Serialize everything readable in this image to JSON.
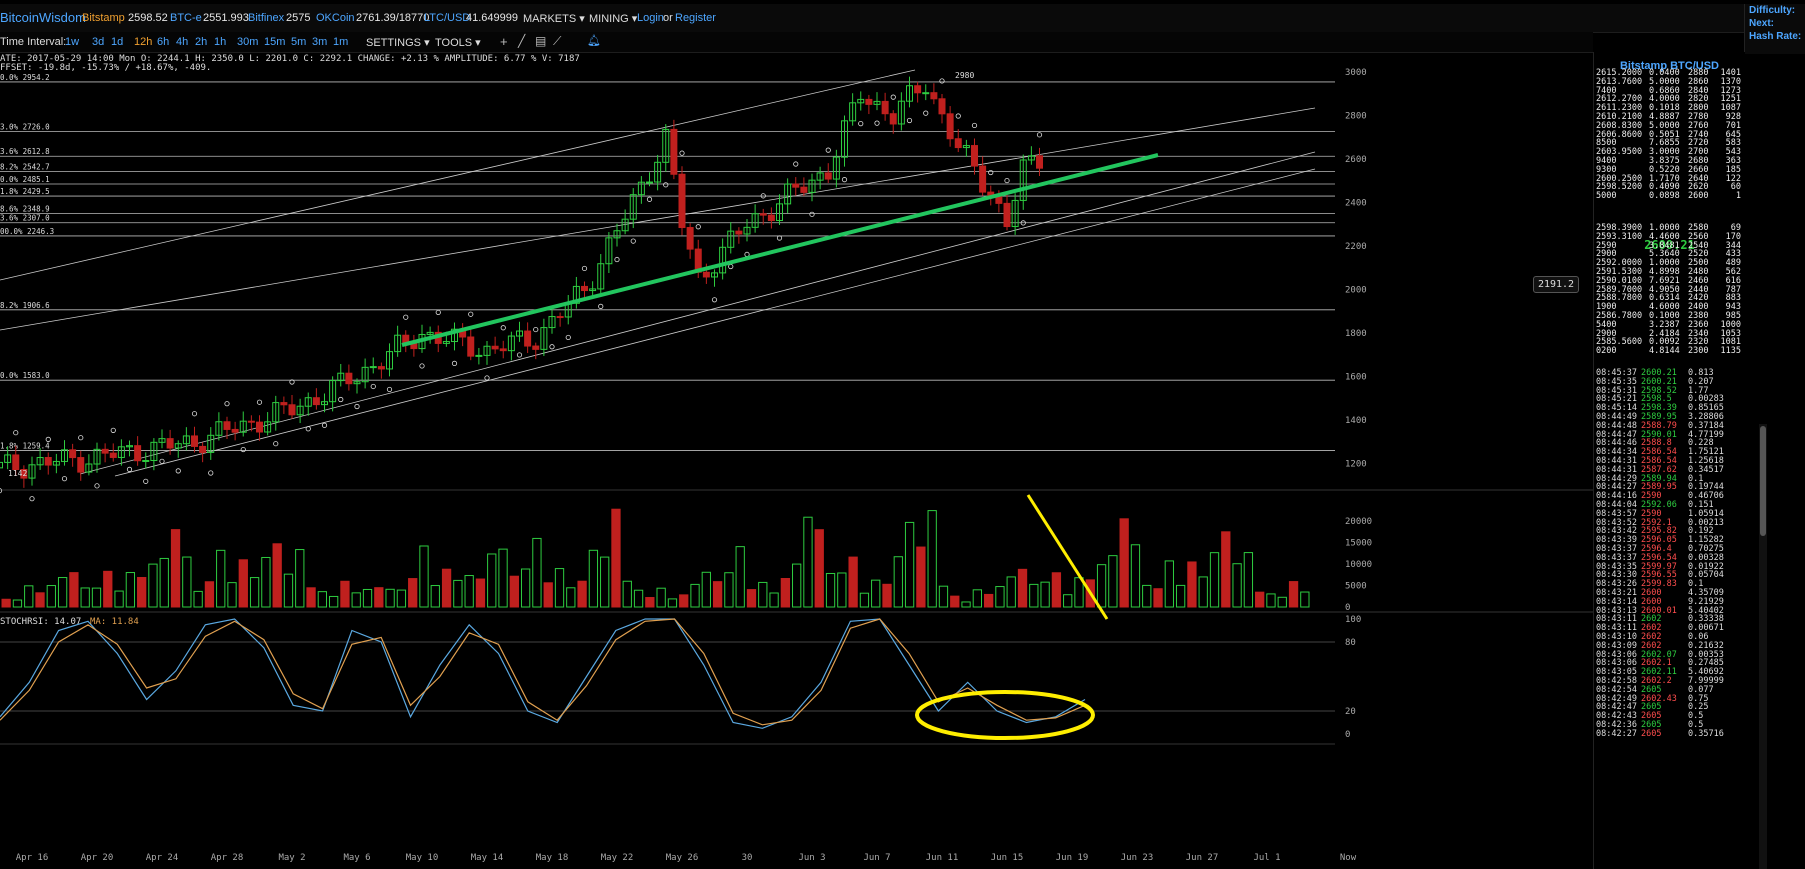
{
  "header": {
    "logo": "BitcoinWisdom",
    "markets": [
      {
        "name": "Bitstamp",
        "price": "2598.52"
      },
      {
        "name": "BTC-e",
        "price": "2551.993"
      },
      {
        "name": "Bitfinex",
        "price": "2575"
      },
      {
        "name": "OKCoin",
        "price": "2761.39/18770"
      },
      {
        "name": "LTC/USD",
        "price": "41.649999"
      }
    ],
    "menus": [
      "MARKETS",
      "MINING"
    ],
    "login": "Login",
    "or": "or",
    "register": "Register",
    "right_labels": [
      "Difficulty:",
      "Next:",
      "Hash Rate:"
    ]
  },
  "toolbar": {
    "label": "Time Interval:",
    "intervals": [
      "1w",
      "3d",
      "1d",
      "12h",
      "6h",
      "4h",
      "2h",
      "1h",
      "30m",
      "15m",
      "5m",
      "3m",
      "1m"
    ],
    "active_interval": "12h",
    "settings": "SETTINGS",
    "tools": "TOOLS",
    "icons": [
      "crosshair-icon",
      "line-tool-icon",
      "hline-tool-icon",
      "ruler-icon",
      "bell-icon"
    ]
  },
  "info": {
    "line1": "ATE: 2017-05-29 14:00 Mon   O: 2244.1   H: 2350.0   L: 2201.0   C: 2292.1   CHANGE: +2.13 %   AMPLITUDE: 6.77 %   V: 7187",
    "line2": "FFSET: -19.8d, -15.73% / +18.67%, -409.",
    "stochrsi": "STOCHRSI: 14.07",
    "ma": "MA: 11.84",
    "pricetag": "2191.2",
    "peak_label": "2980",
    "low_label": "1142"
  },
  "colors": {
    "up": "#2ecc40",
    "down": "#c0201e",
    "link": "#4da6ff",
    "exchange": "#f0a030",
    "trendline": "#22c55e",
    "highlight": "#ffee00",
    "k_line": "#5aa8e0",
    "d_line": "#e0a050"
  },
  "chart_data": [
    {
      "type": "candlestick",
      "title": "",
      "interval": "12h",
      "x_ticks": [
        "Apr 16",
        "Apr 20",
        "Apr 24",
        "Apr 28",
        "May 2",
        "May 6",
        "May 10",
        "May 14",
        "May 18",
        "May 22",
        "May 26",
        "30",
        "Jun 3",
        "Jun 7",
        "Jun 11",
        "Jun 15",
        "Jun 19",
        "Jun 23",
        "Jun 27",
        "Jul 1",
        "Now"
      ],
      "y_ticks": [
        1200,
        1400,
        1600,
        1800,
        2000,
        2200,
        2400,
        2600,
        2800,
        3000
      ],
      "ylim": [
        1142,
        3010
      ],
      "fib_levels": [
        {
          "label": "0.0% 2954.2",
          "value": 2954.2
        },
        {
          "label": "3.0% 2726.0",
          "value": 2726.0
        },
        {
          "label": "3.6% 2612.8",
          "value": 2612.8
        },
        {
          "label": "8.2% 2542.7",
          "value": 2542.7
        },
        {
          "label": "0.0% 2485.1",
          "value": 2485.1
        },
        {
          "label": "1.8% 2429.5",
          "value": 2429.5
        },
        {
          "label": "8.6% 2348.9",
          "value": 2348.9
        },
        {
          "label": "3.6% 2307.0",
          "value": 2307.0
        },
        {
          "label": "00.0% 2246.3",
          "value": 2246.3
        },
        {
          "label": "8.2% 1906.6",
          "value": 1906.6
        },
        {
          "label": "0.0% 1583.0",
          "value": 1583.0
        },
        {
          "label": "1.8% 1259.4",
          "value": 1259.4
        }
      ],
      "key_points": [
        {
          "date": "Apr 14",
          "close": 1180
        },
        {
          "date": "Apr 20",
          "close": 1230
        },
        {
          "date": "Apr 26",
          "close": 1300
        },
        {
          "date": "May 2",
          "close": 1450
        },
        {
          "date": "May 5",
          "close": 1560
        },
        {
          "date": "May 8",
          "close": 1700
        },
        {
          "date": "May 10",
          "close": 1800
        },
        {
          "date": "May 14",
          "close": 1720
        },
        {
          "date": "May 17",
          "close": 1780
        },
        {
          "date": "May 20",
          "close": 2000
        },
        {
          "date": "May 23",
          "close": 2400
        },
        {
          "date": "May 25",
          "close": 2700
        },
        {
          "date": "May 26",
          "close": 2300
        },
        {
          "date": "May 27",
          "close": 2050
        },
        {
          "date": "May 30",
          "close": 2300
        },
        {
          "date": "Jun 2",
          "close": 2450
        },
        {
          "date": "Jun 4",
          "close": 2550
        },
        {
          "date": "Jun 6",
          "close": 2900
        },
        {
          "date": "Jun 8",
          "close": 2800
        },
        {
          "date": "Jun 10",
          "close": 2950
        },
        {
          "date": "Jun 12",
          "close": 2650
        },
        {
          "date": "Jun 14",
          "close": 2450
        },
        {
          "date": "Jun 15",
          "close": 2300
        },
        {
          "date": "Jun 16",
          "close": 2550
        },
        {
          "date": "Jun 17",
          "close": 2600
        }
      ]
    },
    {
      "type": "bar",
      "title": "Volume",
      "y_ticks": [
        0,
        5000,
        10000,
        15000,
        20000
      ],
      "ylim": [
        0,
        25000
      ],
      "values": [
        4000,
        2500,
        6000,
        3500,
        5000,
        7000,
        9000,
        6000,
        8000,
        15000,
        5000,
        9000,
        7000,
        10000,
        12000,
        22000,
        18000,
        8000,
        9000,
        16000,
        6000,
        11000,
        7000,
        13000,
        20000,
        14000,
        24000,
        6000
      ]
    },
    {
      "type": "line",
      "title": "STOCHRSI",
      "y_ticks": [
        0,
        20,
        80,
        100
      ],
      "ylim": [
        0,
        100
      ],
      "series": [
        {
          "name": "STOCHRSI",
          "values": [
            15,
            45,
            90,
            98,
            70,
            30,
            55,
            95,
            100,
            75,
            25,
            20,
            90,
            80,
            15,
            60,
            95,
            70,
            20,
            10,
            50,
            90,
            100,
            100,
            60,
            10,
            5,
            15,
            45,
            98,
            100,
            60,
            20,
            45,
            20,
            10,
            15,
            30
          ]
        },
        {
          "name": "MA",
          "values": [
            12,
            38,
            80,
            95,
            78,
            40,
            48,
            85,
            98,
            82,
            35,
            22,
            78,
            84,
            25,
            50,
            88,
            78,
            28,
            12,
            42,
            82,
            98,
            100,
            70,
            18,
            8,
            12,
            38,
            92,
            100,
            70,
            28,
            40,
            25,
            12,
            14,
            25
          ]
        }
      ]
    }
  ],
  "orderbook": {
    "title": "Bitstamp BTC/USD",
    "mid_price": "2600.21",
    "asks": [
      [
        "2615.2000",
        "0.0400",
        "2880",
        "1401"
      ],
      [
        "2613.7600",
        "5.0000",
        "2860",
        "1370"
      ],
      [
        "7400",
        "0.6860",
        "2840",
        "1273"
      ],
      [
        "2612.2700",
        "4.0000",
        "2820",
        "1251"
      ],
      [
        "2611.2300",
        "0.1018",
        "2800",
        "1087"
      ],
      [
        "2610.2100",
        "4.8887",
        "2780",
        "928"
      ],
      [
        "2608.8300",
        "5.0000",
        "2760",
        "701"
      ],
      [
        "2606.8600",
        "0.5051",
        "2740",
        "645"
      ],
      [
        "8500",
        "7.6855",
        "2720",
        "583"
      ],
      [
        "2603.9500",
        "3.0000",
        "2700",
        "543"
      ],
      [
        "9400",
        "3.8375",
        "2680",
        "363"
      ],
      [
        "9300",
        "0.5220",
        "2660",
        "185"
      ],
      [
        "2600.2500",
        "1.7170",
        "2640",
        "122"
      ],
      [
        "2598.5200",
        "0.4090",
        "2620",
        "60"
      ],
      [
        "5000",
        "0.0898",
        "2600",
        "1"
      ]
    ],
    "bids": [
      [
        "2598.3900",
        "1.0000",
        "2580",
        "69"
      ],
      [
        "2593.3100",
        "4.4600",
        "2560",
        "170"
      ],
      [
        "2590",
        "3.8481",
        "2540",
        "344"
      ],
      [
        "2900",
        "5.3640",
        "2520",
        "433"
      ],
      [
        "2592.0000",
        "1.0000",
        "2500",
        "489"
      ],
      [
        "2591.5300",
        "4.8998",
        "2480",
        "562"
      ],
      [
        "2590.0100",
        "7.6921",
        "2460",
        "616"
      ],
      [
        "2589.7000",
        "4.9050",
        "2440",
        "787"
      ],
      [
        "2588.7800",
        "0.6314",
        "2420",
        "883"
      ],
      [
        "1900",
        "4.6000",
        "2400",
        "943"
      ],
      [
        "2586.7800",
        "0.1000",
        "2380",
        "985"
      ],
      [
        "5400",
        "3.2387",
        "2360",
        "1000"
      ],
      [
        "2900",
        "2.4184",
        "2340",
        "1053"
      ],
      [
        "2585.5600",
        "0.0092",
        "2320",
        "1081"
      ],
      [
        "0200",
        "4.8144",
        "2300",
        "1135"
      ]
    ]
  },
  "trades": [
    [
      "08:45:37",
      "2600.21",
      "0.813",
      "up"
    ],
    [
      "08:45:35",
      "2600.21",
      "0.207",
      "up"
    ],
    [
      "08:45:31",
      "2598.52",
      "1.77",
      "up"
    ],
    [
      "08:45:21",
      "2598.5",
      "0.00283",
      "up"
    ],
    [
      "08:45:14",
      "2598.39",
      "0.85165",
      "up"
    ],
    [
      "08:44:49",
      "2589.95",
      "3.28806",
      "up"
    ],
    [
      "08:44:48",
      "2588.79",
      "0.37184",
      "dn"
    ],
    [
      "08:44:47",
      "2590.01",
      "4.77199",
      "up"
    ],
    [
      "08:44:46",
      "2588.8",
      "0.228",
      "dn"
    ],
    [
      "08:44:34",
      "2586.54",
      "1.75121",
      "dn"
    ],
    [
      "08:44:31",
      "2586.54",
      "1.25618",
      "dn"
    ],
    [
      "08:44:31",
      "2587.62",
      "0.34517",
      "dn"
    ],
    [
      "08:44:29",
      "2589.94",
      "0.1",
      "up"
    ],
    [
      "08:44:27",
      "2589.95",
      "0.19744",
      "dn"
    ],
    [
      "08:44:16",
      "2590",
      "0.46706",
      "dn"
    ],
    [
      "08:44:04",
      "2592.06",
      "0.151",
      "up"
    ],
    [
      "08:43:57",
      "2590",
      "1.05914",
      "dn"
    ],
    [
      "08:43:52",
      "2592.1",
      "0.00213",
      "dn"
    ],
    [
      "08:43:42",
      "2595.82",
      "0.192",
      "dn"
    ],
    [
      "08:43:39",
      "2596.05",
      "1.15282",
      "dn"
    ],
    [
      "08:43:37",
      "2596.4",
      "0.70275",
      "dn"
    ],
    [
      "08:43:37",
      "2596.54",
      "0.00328",
      "dn"
    ],
    [
      "08:43:35",
      "2599.97",
      "0.01922",
      "dn"
    ],
    [
      "08:43:30",
      "2596.55",
      "0.05704",
      "dn"
    ],
    [
      "08:43:26",
      "2599.83",
      "0.1",
      "dn"
    ],
    [
      "08:43:21",
      "2600",
      "4.35709",
      "dn"
    ],
    [
      "08:43:14",
      "2600",
      "9.21929",
      "dn"
    ],
    [
      "08:43:13",
      "2600.01",
      "5.40402",
      "dn"
    ],
    [
      "08:43:11",
      "2602",
      "0.33338",
      "up"
    ],
    [
      "08:43:11",
      "2602",
      "0.00671",
      "dn"
    ],
    [
      "08:43:10",
      "2602",
      "0.06",
      "dn"
    ],
    [
      "08:43:09",
      "2602",
      "0.21632",
      "dn"
    ],
    [
      "08:43:06",
      "2602.07",
      "0.00353",
      "up"
    ],
    [
      "08:43:06",
      "2602.1",
      "0.27485",
      "dn"
    ],
    [
      "08:43:05",
      "2602.11",
      "5.40692",
      "up"
    ],
    [
      "08:42:58",
      "2602.2",
      "7.99999",
      "dn"
    ],
    [
      "08:42:54",
      "2605",
      "0.077",
      "up"
    ],
    [
      "08:42:49",
      "2602.43",
      "0.75",
      "dn"
    ],
    [
      "08:42:47",
      "2605",
      "0.25",
      "up"
    ],
    [
      "08:42:43",
      "2605",
      "0.5",
      "dn"
    ],
    [
      "08:42:36",
      "2605",
      "0.5",
      "up"
    ],
    [
      "08:42:27",
      "2605",
      "0.35716",
      "dn"
    ]
  ]
}
